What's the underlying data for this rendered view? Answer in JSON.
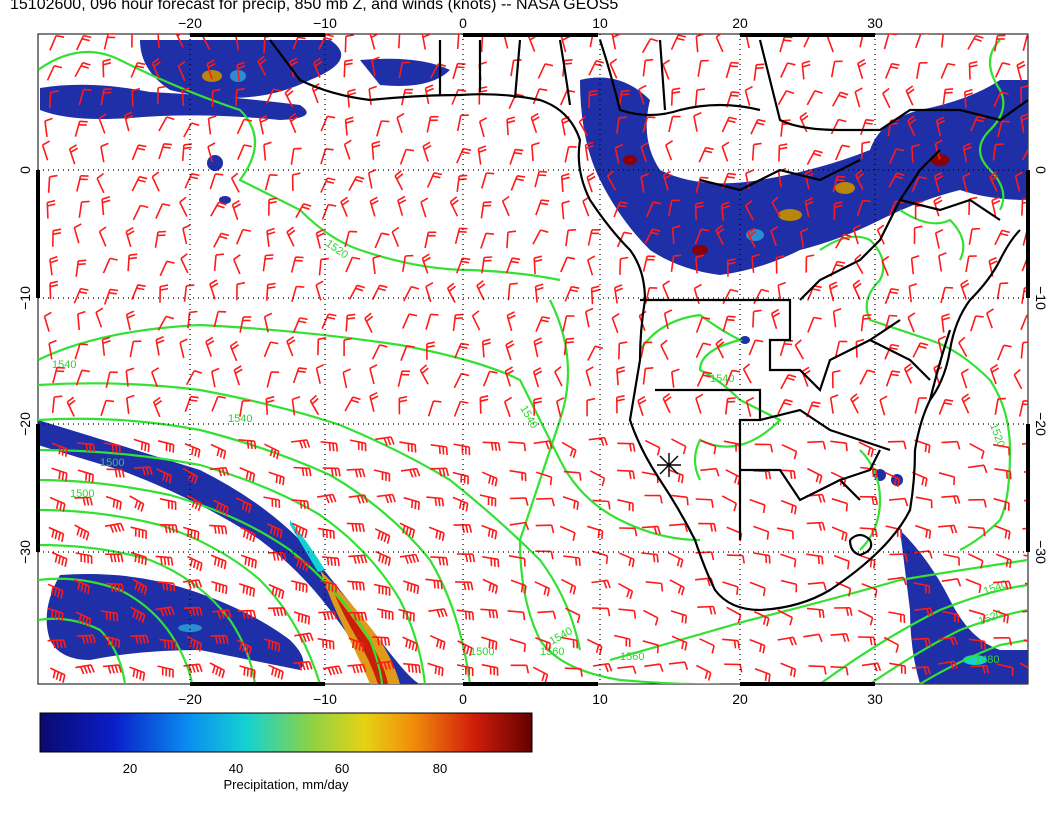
{
  "title": "15102600, 096 hour forecast for precip, 850 mb Z, and winds (knots) -- NASA GEOS5",
  "axes": {
    "lon_ticks": [
      "−20",
      "−10",
      "0",
      "10",
      "20",
      "30"
    ],
    "lat_ticks": [
      "0",
      "−10",
      "−20",
      "−30"
    ]
  },
  "contours": {
    "labels": [
      "1520",
      "1540",
      "1540",
      "1500",
      "1500",
      "1540",
      "1540",
      "1540",
      "1560",
      "1560",
      "1500",
      "1520",
      "1520",
      "1540",
      "1480"
    ]
  },
  "colorbar": {
    "ticks": [
      "20",
      "40",
      "60",
      "80"
    ],
    "label": "Precipitation, mm/day"
  },
  "colors": {
    "contour": "#33e033",
    "barb": "#ff1a1a",
    "coast": "#000000",
    "precip_low": "#1a237e",
    "precip_mid": "#00c8c8",
    "precip_high": "#b40000"
  }
}
